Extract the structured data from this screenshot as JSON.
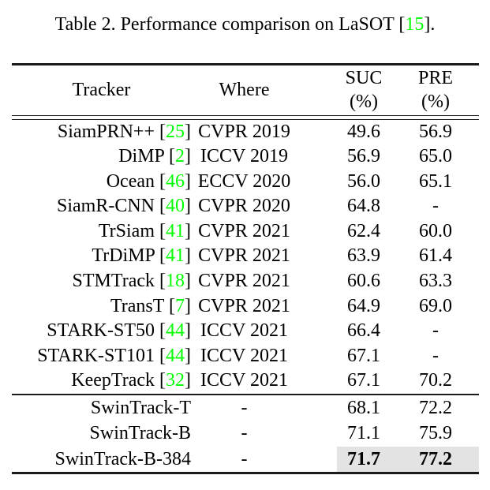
{
  "colors": {
    "citation_green": "#00ff00",
    "highlight_gray": "#e3e3e3"
  },
  "caption": {
    "text": "Table 2. Performance comparison on LaSOT ",
    "bracket_open": "[",
    "citation": "15",
    "bracket_close": "]."
  },
  "table": {
    "headers": {
      "tracker": "Tracker",
      "where": "Where",
      "suc_line1": "SUC",
      "suc_line2": "(%)",
      "pre_line1": "PRE",
      "pre_line2": "(%)"
    },
    "rows": [
      {
        "tracker": "SiamPRN++",
        "cite": "25",
        "where": "CVPR 2019",
        "suc": "49.6",
        "pre": "56.9"
      },
      {
        "tracker": "DiMP",
        "cite": "2",
        "where": "ICCV 2019",
        "suc": "56.9",
        "pre": "65.0"
      },
      {
        "tracker": "Ocean",
        "cite": "46",
        "where": "ECCV 2020",
        "suc": "56.0",
        "pre": "65.1"
      },
      {
        "tracker": "SiamR-CNN",
        "cite": "40",
        "where": "CVPR 2020",
        "suc": "64.8",
        "pre": "-"
      },
      {
        "tracker": "TrSiam",
        "cite": "41",
        "where": "CVPR 2021",
        "suc": "62.4",
        "pre": "60.0"
      },
      {
        "tracker": "TrDiMP",
        "cite": "41",
        "where": "CVPR 2021",
        "suc": "63.9",
        "pre": "61.4"
      },
      {
        "tracker": "STMTrack",
        "cite": "18",
        "where": "CVPR 2021",
        "suc": "60.6",
        "pre": "63.3"
      },
      {
        "tracker": "TransT",
        "cite": "7",
        "where": "CVPR 2021",
        "suc": "64.9",
        "pre": "69.0"
      },
      {
        "tracker": "STARK-ST50",
        "cite": "44",
        "where": "ICCV 2021",
        "suc": "66.4",
        "pre": "-"
      },
      {
        "tracker": "STARK-ST101",
        "cite": "44",
        "where": "ICCV 2021",
        "suc": "67.1",
        "pre": "-"
      },
      {
        "tracker": "KeepTrack",
        "cite": "32",
        "where": "ICCV 2021",
        "suc": "67.1",
        "pre": "70.2"
      }
    ],
    "ours_rows": [
      {
        "tracker": "SwinTrack-T",
        "cite": null,
        "where": "-",
        "suc": "68.1",
        "pre": "72.2",
        "highlight": false
      },
      {
        "tracker": "SwinTrack-B",
        "cite": null,
        "where": "-",
        "suc": "71.1",
        "pre": "75.9",
        "highlight": false
      },
      {
        "tracker": "SwinTrack-B-384",
        "cite": null,
        "where": "-",
        "suc": "71.7",
        "pre": "77.2",
        "highlight": true
      }
    ]
  }
}
